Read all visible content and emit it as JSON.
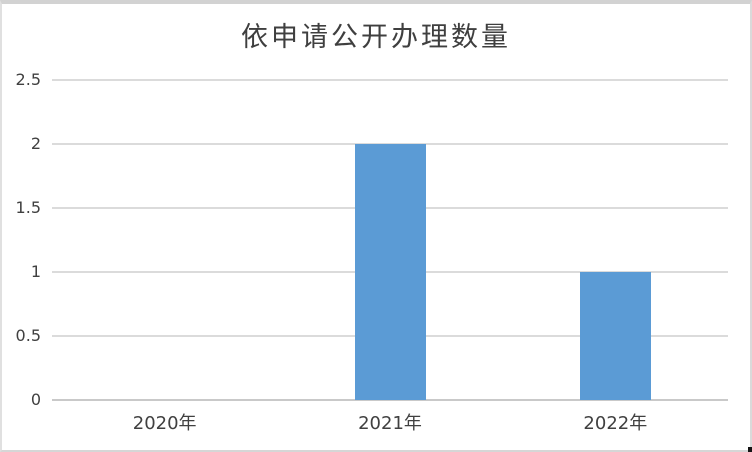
{
  "chart_data": {
    "type": "bar",
    "title": "依申请公开办理数量",
    "categories": [
      "2020年",
      "2021年",
      "2022年"
    ],
    "values": [
      0,
      2,
      1
    ],
    "xlabel": "",
    "ylabel": "",
    "ylim": [
      0,
      2.5
    ],
    "ytick_step": 0.5,
    "ytick_labels": [
      "0",
      "0.5",
      "1",
      "1.5",
      "2",
      "2.5"
    ],
    "grid": true,
    "legend_position": "none",
    "bar_color": "#5B9BD5",
    "gridline_color": "#DBDBDB",
    "axis_line_color": "#C9C9C9",
    "text_color": "#404040",
    "title_color": "#3F3F3F",
    "background_color": "#FFFFFF",
    "border_color": "#D2D2D2"
  }
}
